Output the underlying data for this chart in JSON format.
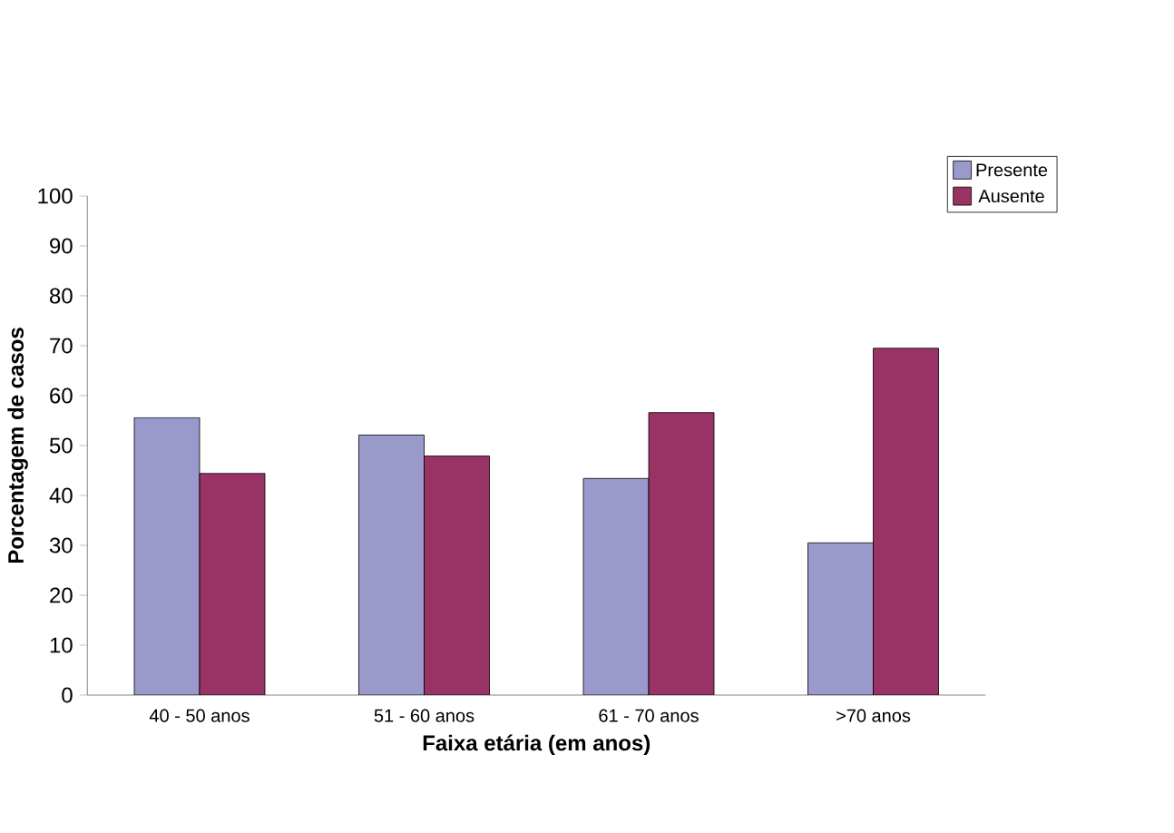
{
  "chart_data": {
    "type": "bar",
    "xlabel": "Faixa etária (em anos)",
    "ylabel": "Porcentagem de casos",
    "categories": [
      "40 - 50 anos",
      "51 - 60 anos",
      "61 - 70 anos",
      ">70 anos"
    ],
    "series": [
      {
        "name": "Presente",
        "color": "#9999cc",
        "values": [
          55.6,
          52.1,
          43.4,
          30.5
        ]
      },
      {
        "name": "Ausente",
        "color": "#993366",
        "values": [
          44.4,
          47.9,
          56.6,
          69.5
        ]
      }
    ],
    "ylim": [
      0,
      100
    ],
    "yticks": [
      0,
      10,
      20,
      30,
      40,
      50,
      60,
      70,
      80,
      90,
      100
    ],
    "grid": false,
    "legend": "top right"
  }
}
